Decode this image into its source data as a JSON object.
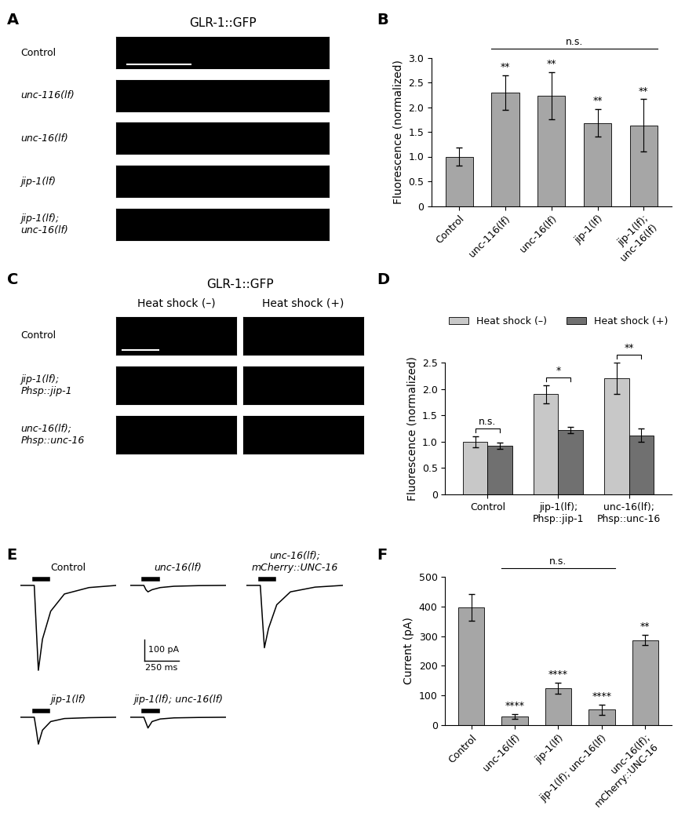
{
  "chart_data": [
    {
      "panel": "A",
      "type": "image",
      "title": "GLR-1::GFP",
      "rows": [
        "Control",
        "unc-116(lf)",
        "unc-16(lf)",
        "jip-1(lf)",
        "jip-1(lf);\nunc-16(lf)"
      ]
    },
    {
      "panel": "B",
      "type": "bar",
      "y_label": "Fluorescence (normalized)",
      "categories": [
        "Control",
        "unc-116(lf)",
        "unc-16(lf)",
        "jip-1(lf)",
        "jip-1(lf);\nunc-16(lf)"
      ],
      "values": [
        1.0,
        2.3,
        2.23,
        1.68,
        1.63
      ],
      "errors": [
        0.18,
        0.35,
        0.48,
        0.28,
        0.53
      ],
      "color": "#a6a6a6",
      "ylim": [
        0,
        3.0
      ],
      "yticks": [
        0,
        0.5,
        1.0,
        1.5,
        2.0,
        2.5,
        3.0
      ],
      "significance": [
        null,
        "**",
        "**",
        "**",
        "**"
      ],
      "brackets": [
        {
          "from": 1,
          "to": 4,
          "label": "n.s."
        }
      ]
    },
    {
      "panel": "C",
      "type": "image",
      "title": "GLR-1::GFP",
      "columns": [
        "Heat shock (–)",
        "Heat shock (+)"
      ],
      "rows": [
        "Control",
        "jip-1(lf);\nPhsp::jip-1",
        "unc-16(lf);\nPhsp::unc-16"
      ]
    },
    {
      "panel": "D",
      "type": "bar",
      "y_label": "Fluorescence (normalized)",
      "categories": [
        "Control",
        "jip-1(lf);\nPhsp::jip-1",
        "unc-16(lf);\nPhsp::unc-16"
      ],
      "series": [
        {
          "name": "Heat shock (–)",
          "color": "#c8c8c8",
          "values": [
            1.0,
            1.9,
            2.2
          ],
          "errors": [
            0.1,
            0.17,
            0.3
          ]
        },
        {
          "name": "Heat shock (+)",
          "color": "#707070",
          "values": [
            0.92,
            1.22,
            1.12
          ],
          "errors": [
            0.06,
            0.06,
            0.13
          ]
        }
      ],
      "ylim": [
        0,
        2.5
      ],
      "yticks": [
        0,
        0.5,
        1.0,
        1.5,
        2.0,
        2.5
      ],
      "legend": "upper center",
      "group_brackets": [
        "n.s.",
        "*",
        "**"
      ]
    },
    {
      "panel": "E",
      "type": "line",
      "x": [
        0,
        100,
        115,
        130,
        160,
        220,
        320,
        500,
        700
      ],
      "xlim": [
        0,
        700
      ],
      "ylim": [
        -420,
        40
      ],
      "stimulus": [
        100,
        200
      ],
      "scale_bar": {
        "y": 100,
        "y_label": "100 pA",
        "x": 250,
        "x_label": "250 ms"
      },
      "series": [
        {
          "name": "Control",
          "color": "#000000",
          "values": [
            0,
            0,
            -200,
            -395,
            -250,
            -120,
            -40,
            -10,
            0
          ]
        },
        {
          "name": "unc-16(lf)",
          "color": "#000000",
          "values": [
            0,
            0,
            -20,
            -30,
            -20,
            -10,
            -4,
            -1,
            0
          ]
        },
        {
          "name": "unc-16(lf);\nmCherry::UNC-16",
          "color": "#000000",
          "values": [
            0,
            0,
            -150,
            -290,
            -200,
            -90,
            -30,
            -8,
            0
          ]
        },
        {
          "name": "jip-1(lf)",
          "color": "#000000",
          "values": [
            0,
            0,
            -60,
            -125,
            -60,
            -20,
            -6,
            -2,
            0
          ]
        },
        {
          "name": "jip-1(lf); unc-16(lf)",
          "color": "#000000",
          "values": [
            0,
            0,
            -25,
            -50,
            -20,
            -8,
            -3,
            -1,
            0
          ]
        }
      ]
    },
    {
      "panel": "F",
      "type": "bar",
      "y_label": "Current (pA)",
      "categories": [
        "Control",
        "unc-16(lf)",
        "jip-1(lf)",
        "jip-1(lf); unc-16(lf)",
        "unc-16(lf);\nmCherry::UNC-16"
      ],
      "values": [
        398,
        30,
        125,
        52,
        287
      ],
      "errors": [
        45,
        8,
        18,
        17,
        18
      ],
      "color": "#a6a6a6",
      "ylim": [
        0,
        500
      ],
      "yticks": [
        0,
        100,
        200,
        300,
        400,
        500
      ],
      "significance": [
        null,
        "****",
        "****",
        "****",
        "**"
      ],
      "brackets": [
        {
          "from": 1,
          "to": 3,
          "label": "n.s."
        }
      ]
    }
  ]
}
